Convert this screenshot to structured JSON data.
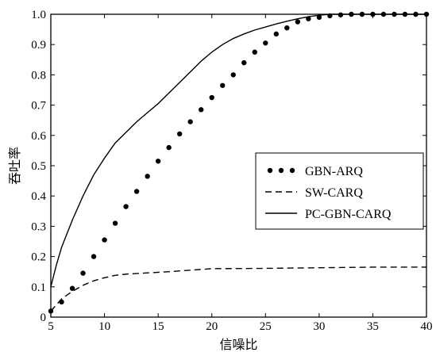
{
  "chart_data": {
    "type": "line",
    "title": "",
    "xlabel": "信噪比",
    "ylabel": "吞吐率",
    "xlim": [
      5,
      40
    ],
    "ylim": [
      0,
      1
    ],
    "grid": false,
    "legend_position": "center-right",
    "x_ticks": [
      "5",
      "10",
      "15",
      "20",
      "25",
      "30",
      "35",
      "40"
    ],
    "y_ticks": [
      "0",
      "0.1",
      "0.2",
      "0.3",
      "0.4",
      "0.5",
      "0.6",
      "0.7",
      "0.8",
      "0.9",
      "1.0"
    ],
    "series": [
      {
        "name": "GBN-ARQ",
        "style": "dotted-markers",
        "x": [
          5,
          6,
          7,
          8,
          9,
          10,
          11,
          12,
          13,
          14,
          15,
          16,
          17,
          18,
          19,
          20,
          21,
          22,
          23,
          24,
          25,
          26,
          27,
          28,
          29,
          30,
          31,
          32,
          33,
          34,
          35,
          36,
          37,
          38,
          39,
          40
        ],
        "y": [
          0.02,
          0.05,
          0.095,
          0.145,
          0.2,
          0.255,
          0.31,
          0.365,
          0.415,
          0.465,
          0.515,
          0.56,
          0.605,
          0.645,
          0.685,
          0.725,
          0.765,
          0.8,
          0.84,
          0.875,
          0.905,
          0.935,
          0.955,
          0.975,
          0.985,
          0.99,
          0.995,
          0.998,
          1.0,
          1.0,
          1.0,
          1.0,
          1.0,
          1.0,
          1.0,
          1.0
        ]
      },
      {
        "name": "SW-CARQ",
        "style": "dashed",
        "x": [
          5,
          6,
          7,
          8,
          9,
          10,
          11,
          12,
          14,
          16,
          18,
          20,
          25,
          30,
          35,
          40
        ],
        "y": [
          0.02,
          0.06,
          0.085,
          0.105,
          0.12,
          0.13,
          0.138,
          0.142,
          0.146,
          0.15,
          0.155,
          0.16,
          0.161,
          0.163,
          0.165,
          0.165
        ]
      },
      {
        "name": "PC-GBN-CARQ",
        "style": "solid",
        "x": [
          5,
          5.5,
          6,
          7,
          8,
          9,
          10,
          11,
          12,
          13,
          14,
          15,
          16,
          17,
          18,
          19,
          20,
          21,
          22,
          23,
          24,
          25,
          26,
          27,
          28,
          29,
          30,
          31,
          32,
          33,
          35,
          40
        ],
        "y": [
          0.1,
          0.17,
          0.23,
          0.32,
          0.4,
          0.47,
          0.525,
          0.575,
          0.61,
          0.645,
          0.675,
          0.705,
          0.74,
          0.775,
          0.81,
          0.845,
          0.875,
          0.9,
          0.92,
          0.935,
          0.948,
          0.958,
          0.968,
          0.977,
          0.985,
          0.992,
          0.997,
          1.0,
          1.0,
          1.0,
          1.0,
          1.0
        ]
      }
    ]
  }
}
